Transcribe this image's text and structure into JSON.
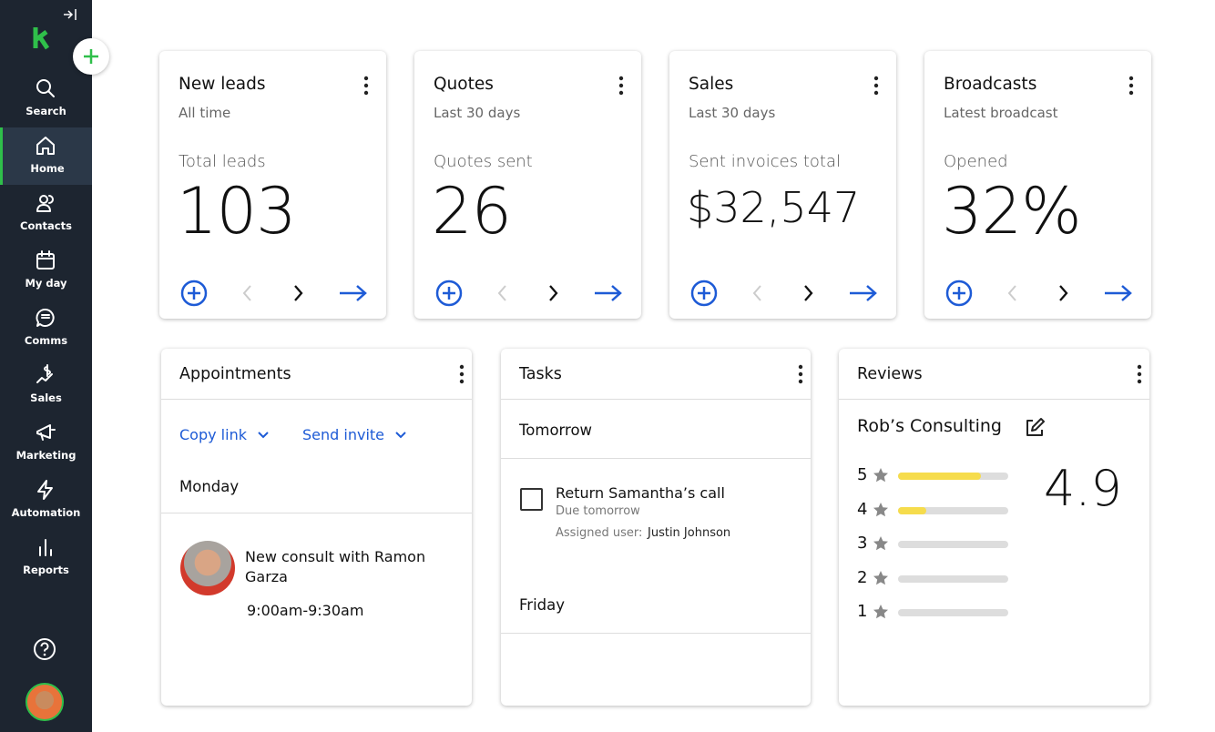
{
  "sidebar": {
    "items": [
      {
        "label": "Search"
      },
      {
        "label": "Home",
        "active": true
      },
      {
        "label": "Contacts"
      },
      {
        "label": "My day"
      },
      {
        "label": "Comms"
      },
      {
        "label": "Sales"
      },
      {
        "label": "Marketing"
      },
      {
        "label": "Automation"
      },
      {
        "label": "Reports"
      }
    ]
  },
  "stat_cards": [
    {
      "title": "New leads",
      "period": "All time",
      "metric_label": "Total leads",
      "value": "103"
    },
    {
      "title": "Quotes",
      "period": "Last 30 days",
      "metric_label": "Quotes sent",
      "value": "26"
    },
    {
      "title": "Sales",
      "period": "Last 30 days",
      "metric_label": "Sent invoices total",
      "value": "$32,547"
    },
    {
      "title": "Broadcasts",
      "period": "Latest broadcast",
      "metric_label": "Opened",
      "value": "32%"
    }
  ],
  "appointments": {
    "title": "Appointments",
    "actions": [
      "Copy link",
      "Send invite"
    ],
    "day": "Monday",
    "event": {
      "title": "New consult with Ramon Garza",
      "time": "9:00am-9:30am"
    }
  },
  "tasks": {
    "title": "Tasks",
    "groups": [
      "Tomorrow",
      "Friday"
    ],
    "task": {
      "title": "Return Samantha’s call",
      "due": "Due tomorrow",
      "assigned_label": "Assigned user:",
      "assigned_user": "Justin Johnson"
    }
  },
  "reviews": {
    "title": "Reviews",
    "business": "Rob’s Consulting",
    "rating": "4.9",
    "bars": [
      {
        "stars": 5,
        "share": 0.75
      },
      {
        "stars": 4,
        "share": 0.26
      },
      {
        "stars": 3,
        "share": 0
      },
      {
        "stars": 2,
        "share": 0
      },
      {
        "stars": 1,
        "share": 0
      }
    ]
  }
}
